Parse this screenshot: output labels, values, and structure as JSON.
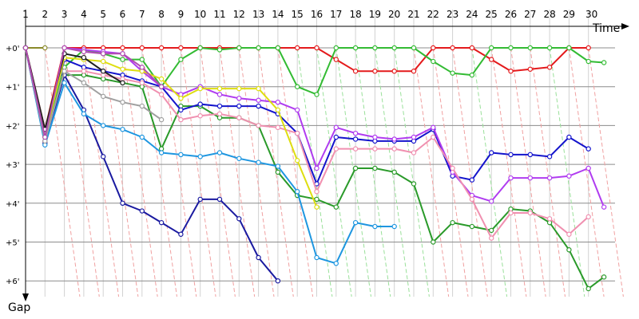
{
  "chart_data": {
    "type": "line",
    "xlabel": "Time",
    "ylabel": "Gap",
    "xlim": [
      0,
      30.5
    ],
    "ylim": [
      0,
      6.3
    ],
    "x_ticks": [
      1,
      2,
      3,
      4,
      5,
      6,
      7,
      8,
      9,
      10,
      11,
      12,
      13,
      14,
      15,
      16,
      17,
      18,
      19,
      20,
      21,
      22,
      23,
      24,
      25,
      26,
      27,
      28,
      29,
      30
    ],
    "x_tick_labels": [
      "1",
      "2",
      "3",
      "4",
      "5",
      "6",
      "7",
      "8",
      "9",
      "10",
      "11",
      "12",
      "13",
      "14",
      "15",
      "16",
      "17",
      "18",
      "19",
      "20",
      "21",
      "22",
      "23",
      "24",
      "25",
      "26",
      "27",
      "28",
      "29",
      "30"
    ],
    "y_ticks": [
      0,
      1,
      2,
      3,
      4,
      5,
      6
    ],
    "y_tick_labels": [
      "+0'",
      "+1'",
      "+2'",
      "+3'",
      "+4'",
      "+5'",
      "+6'"
    ],
    "grid": true,
    "colors": {
      "red": "#e41a1c",
      "green": "#33bb33",
      "darkgreen": "#2a9a2a",
      "navy": "#1a1aa0",
      "blue": "#1414cc",
      "purple": "#b03cf0",
      "pink": "#f090b0",
      "skyblue": "#1e96e0",
      "yellow": "#dede10",
      "olive": "#8a8a2a",
      "black": "#202020",
      "gray": "#a0a0a0",
      "violet": "#b04cb0",
      "diagRed": "#f0a0a0",
      "diagGreen": "#9ae09a"
    },
    "series": [
      {
        "color": "red",
        "x": [
          1,
          2,
          3,
          4,
          5,
          6,
          7,
          8,
          9,
          10,
          11,
          12,
          13,
          14,
          15,
          16,
          17,
          18,
          19,
          20,
          21,
          22,
          23,
          24,
          25,
          26,
          27,
          28,
          29,
          30
        ],
        "y": [
          0,
          2.1,
          0,
          0,
          0,
          0,
          0,
          0,
          0,
          0,
          0,
          0,
          0,
          0,
          0,
          0,
          0.3,
          0.6,
          0.6,
          0.6,
          0.6,
          0,
          0,
          0,
          0.3,
          0.6,
          0.55,
          0.5,
          0,
          0
        ]
      },
      {
        "color": "green",
        "x": [
          1,
          2,
          3,
          4,
          5,
          6,
          7,
          8,
          9,
          10,
          11,
          12,
          13,
          14,
          15,
          16,
          17,
          18,
          19,
          20,
          21,
          22,
          23,
          24,
          25,
          26,
          27,
          28,
          29,
          30,
          30.8
        ],
        "y": [
          0,
          2.3,
          0.5,
          0.05,
          0.15,
          0.3,
          0.3,
          1.0,
          0.3,
          0,
          0.05,
          0,
          0,
          0,
          1.0,
          1.2,
          0,
          0,
          0,
          0,
          0,
          0.35,
          0.65,
          0.7,
          0,
          0,
          0,
          0,
          0,
          0.35,
          0.38
        ]
      },
      {
        "color": "darkgreen",
        "x": [
          1,
          2,
          3,
          4,
          5,
          6,
          7,
          8,
          9,
          10,
          11,
          12,
          13,
          14,
          15,
          16,
          17,
          18,
          19,
          20,
          21,
          22,
          23,
          24,
          25,
          26,
          27,
          28,
          29,
          30,
          30.8
        ],
        "y": [
          0,
          2.4,
          0.7,
          0.7,
          0.8,
          0.9,
          1.0,
          2.6,
          1.5,
          1.5,
          1.8,
          1.8,
          2.0,
          3.2,
          3.8,
          3.9,
          4.1,
          3.1,
          3.1,
          3.2,
          3.5,
          5.0,
          4.5,
          4.6,
          4.7,
          4.15,
          4.2,
          4.5,
          5.2,
          6.2,
          5.9
        ]
      },
      {
        "color": "navy",
        "x": [
          1,
          2,
          3,
          4,
          5,
          6,
          7,
          8,
          9,
          10,
          11,
          12,
          13,
          14
        ],
        "y": [
          0,
          2.45,
          0.7,
          1.6,
          2.8,
          4.0,
          4.2,
          4.5,
          4.8,
          3.9,
          3.9,
          4.4,
          5.4,
          6.0
        ]
      },
      {
        "color": "blue",
        "x": [
          1,
          2,
          3,
          4,
          5,
          6,
          7,
          8,
          9,
          10,
          11,
          12,
          13,
          14,
          15,
          16,
          17,
          18,
          19,
          20,
          21,
          22,
          23,
          24,
          25,
          26,
          27,
          28,
          29,
          30
        ],
        "y": [
          0,
          2.2,
          0.3,
          0.5,
          0.6,
          0.7,
          0.85,
          1.0,
          1.6,
          1.45,
          1.5,
          1.5,
          1.5,
          1.7,
          2.2,
          3.5,
          2.3,
          2.35,
          2.4,
          2.4,
          2.4,
          2.1,
          3.3,
          3.4,
          2.7,
          2.75,
          2.75,
          2.8,
          2.3,
          2.6
        ]
      },
      {
        "color": "purple",
        "x": [
          1,
          2,
          3,
          4,
          5,
          6,
          7,
          8,
          9,
          10,
          11,
          12,
          13,
          14,
          15,
          16,
          17,
          18,
          19,
          20,
          21,
          22,
          23,
          24,
          25,
          26,
          27,
          28,
          29,
          30,
          30.8
        ],
        "y": [
          0,
          2.4,
          0,
          0.05,
          0.1,
          0.15,
          0.6,
          1.0,
          1.2,
          1.0,
          1.2,
          1.3,
          1.35,
          1.4,
          1.6,
          3.1,
          2.05,
          2.2,
          2.3,
          2.35,
          2.3,
          2.05,
          3.2,
          3.8,
          3.95,
          3.35,
          3.35,
          3.35,
          3.3,
          3.1,
          4.1
        ]
      },
      {
        "color": "pink",
        "x": [
          1,
          2,
          3,
          4,
          5,
          6,
          7,
          8,
          9,
          10,
          11,
          12,
          13,
          14,
          15,
          16,
          17,
          18,
          19,
          20,
          21,
          22,
          23,
          24,
          25,
          26,
          27,
          28,
          29,
          30
        ],
        "y": [
          0,
          2.4,
          0.6,
          0.6,
          0.7,
          0.8,
          0.9,
          1.2,
          1.85,
          1.75,
          1.7,
          1.8,
          2.0,
          2.05,
          2.2,
          3.7,
          2.6,
          2.6,
          2.6,
          2.6,
          2.7,
          2.3,
          3.1,
          3.9,
          4.9,
          4.25,
          4.25,
          4.4,
          4.8,
          4.35
        ]
      },
      {
        "color": "skyblue",
        "x": [
          1,
          2,
          3,
          4,
          5,
          6,
          7,
          8,
          9,
          10,
          11,
          12,
          13,
          14,
          15,
          16,
          17,
          18,
          19,
          20
        ],
        "y": [
          0,
          2.5,
          0.9,
          1.7,
          2.0,
          2.1,
          2.3,
          2.7,
          2.75,
          2.8,
          2.7,
          2.85,
          2.95,
          3.05,
          3.7,
          5.4,
          5.55,
          4.5,
          4.6,
          4.6
        ]
      },
      {
        "color": "yellow",
        "x": [
          1,
          2,
          3,
          4,
          5,
          6,
          7,
          8,
          9,
          10,
          11,
          12,
          13,
          14,
          15,
          16
        ],
        "y": [
          0,
          2.3,
          0.25,
          0.3,
          0.35,
          0.55,
          0.6,
          0.8,
          1.3,
          1.05,
          1.05,
          1.05,
          1.05,
          1.6,
          2.9,
          4.1
        ]
      },
      {
        "color": "olive",
        "x": [
          1,
          2
        ],
        "y": [
          0,
          0
        ]
      },
      {
        "color": "black",
        "x": [
          1,
          2,
          3,
          4,
          5,
          6
        ],
        "y": [
          0,
          2.1,
          0.15,
          0.25,
          0.6,
          0.9
        ]
      },
      {
        "color": "gray",
        "x": [
          1,
          2,
          3,
          4,
          5,
          6,
          7,
          8
        ],
        "y": [
          0,
          2.4,
          0.6,
          0.9,
          1.25,
          1.4,
          1.5,
          1.85
        ]
      },
      {
        "color": "violet",
        "x": [
          1,
          2,
          3,
          4,
          5,
          6,
          7,
          8
        ],
        "y": [
          0,
          2.3,
          0,
          0.1,
          0.15,
          0.15,
          0.5,
          1.0
        ]
      }
    ]
  }
}
